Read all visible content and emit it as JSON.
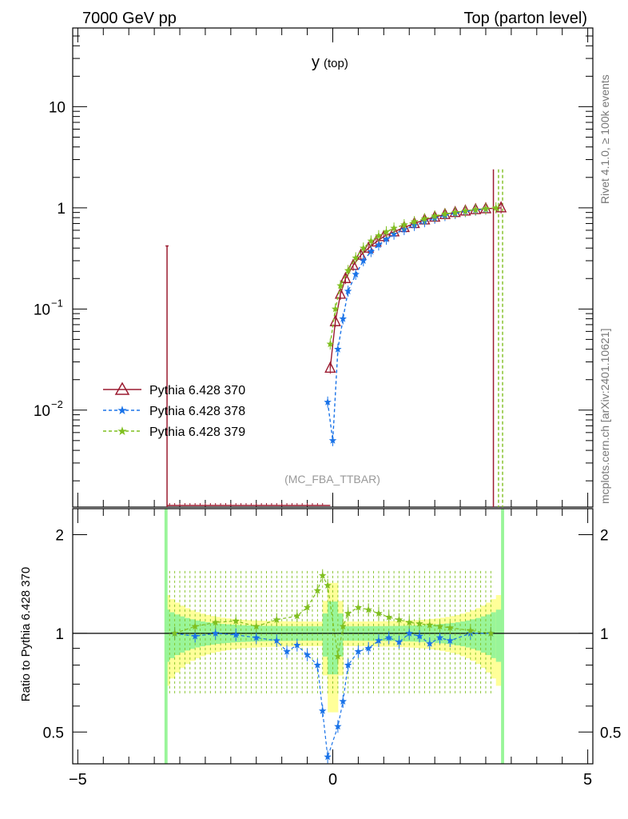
{
  "header": {
    "left": "7000 GeV pp",
    "right": "Top (parton level)",
    "side_top": "Rivet 4.1.0, ≥ 100k events",
    "side_bottom": "mcplots.cern.ch [arXiv:2401.10621]"
  },
  "colors": {
    "s370": "#9b1b30",
    "s378": "#1a73e8",
    "s379": "#7fbf1f",
    "band_yellow": "#ffff99",
    "band_green": "#99f599"
  },
  "chart_data": [
    {
      "type": "line",
      "title": "y",
      "title_sub": "(top)",
      "annotation": "(MC_FBA_TTBAR)",
      "yscale": "log",
      "xlim": [
        -5.1,
        5.1
      ],
      "ylim": [
        0.0011,
        60
      ],
      "y_ticks": [
        {
          "v": 0.01,
          "label": "10",
          "exp": "−2"
        },
        {
          "v": 0.1,
          "label": "10",
          "exp": "−1"
        },
        {
          "v": 1,
          "label": "1",
          "exp": ""
        },
        {
          "v": 10,
          "label": "10",
          "exp": ""
        }
      ],
      "legend_position": "bottom-left",
      "series": [
        {
          "name": "Pythia 6.428 370",
          "marker": "triangle",
          "x": [
            -0.05,
            0.05,
            0.15,
            0.25,
            0.4,
            0.55,
            0.7,
            0.85,
            1.0,
            1.2,
            1.4,
            1.6,
            1.8,
            2.0,
            2.2,
            2.4,
            2.6,
            2.8,
            3.0,
            3.3
          ],
          "y": [
            0.026,
            0.075,
            0.14,
            0.2,
            0.27,
            0.34,
            0.4,
            0.46,
            0.52,
            0.58,
            0.64,
            0.7,
            0.76,
            0.81,
            0.86,
            0.9,
            0.93,
            0.96,
            0.98,
            1.0
          ]
        },
        {
          "name": "Pythia 6.428 378",
          "marker": "star",
          "x": [
            -0.1,
            0.0,
            0.1,
            0.2,
            0.3,
            0.45,
            0.6,
            0.75,
            0.9,
            1.05,
            1.2,
            1.4,
            1.6,
            1.8,
            2.0,
            2.2,
            2.4,
            2.6,
            2.8,
            3.0
          ],
          "y": [
            0.012,
            0.005,
            0.04,
            0.08,
            0.15,
            0.22,
            0.3,
            0.37,
            0.43,
            0.49,
            0.55,
            0.61,
            0.67,
            0.73,
            0.79,
            0.84,
            0.88,
            0.92,
            0.95,
            0.97
          ]
        },
        {
          "name": "Pythia 6.428 379",
          "marker": "star",
          "x": [
            -0.05,
            0.05,
            0.15,
            0.3,
            0.45,
            0.6,
            0.75,
            0.9,
            1.05,
            1.2,
            1.4,
            1.6,
            1.8,
            2.0,
            2.2,
            2.4,
            2.6,
            2.8,
            3.0,
            3.2
          ],
          "y": [
            0.045,
            0.1,
            0.17,
            0.24,
            0.32,
            0.4,
            0.47,
            0.53,
            0.58,
            0.63,
            0.68,
            0.73,
            0.78,
            0.83,
            0.87,
            0.9,
            0.93,
            0.96,
            0.98,
            1.0
          ]
        }
      ]
    },
    {
      "type": "line",
      "ylabel": "Ratio to Pythia 6.428 370",
      "yscale": "log",
      "xlim": [
        -5.1,
        5.1
      ],
      "ylim": [
        0.4,
        2.4
      ],
      "x_ticks": [
        {
          "v": -5,
          "label": "−5"
        },
        {
          "v": 0,
          "label": "0"
        },
        {
          "v": 5,
          "label": "5"
        }
      ],
      "y_ticks": [
        {
          "v": 0.5,
          "label": "0.5"
        },
        {
          "v": 1,
          "label": "1"
        },
        {
          "v": 2,
          "label": "2"
        }
      ],
      "series": [
        {
          "name": "Pythia 6.428 378",
          "x": [
            -3.1,
            -2.7,
            -2.3,
            -1.9,
            -1.5,
            -1.1,
            -0.9,
            -0.7,
            -0.5,
            -0.3,
            -0.2,
            -0.1,
            0.1,
            0.2,
            0.3,
            0.5,
            0.7,
            0.9,
            1.1,
            1.3,
            1.5,
            1.7,
            1.9,
            2.1,
            2.3,
            2.7,
            3.1
          ],
          "y": [
            1.0,
            0.98,
            1.0,
            0.99,
            0.97,
            0.95,
            0.88,
            0.92,
            0.86,
            0.8,
            0.58,
            0.42,
            0.52,
            0.62,
            0.8,
            0.88,
            0.9,
            0.95,
            0.97,
            0.94,
            1.0,
            0.98,
            0.93,
            0.97,
            0.95,
            1.0,
            1.0
          ]
        },
        {
          "name": "Pythia 6.428 379",
          "x": [
            -3.1,
            -2.7,
            -2.3,
            -1.9,
            -1.5,
            -1.1,
            -0.7,
            -0.5,
            -0.3,
            -0.2,
            -0.1,
            0.1,
            0.2,
            0.3,
            0.5,
            0.7,
            0.9,
            1.1,
            1.3,
            1.5,
            1.7,
            1.9,
            2.1,
            2.3,
            2.7,
            3.1
          ],
          "y": [
            1.0,
            1.05,
            1.08,
            1.09,
            1.05,
            1.1,
            1.13,
            1.2,
            1.35,
            1.5,
            1.4,
            0.85,
            1.05,
            1.15,
            1.2,
            1.18,
            1.15,
            1.12,
            1.1,
            1.08,
            1.07,
            1.06,
            1.05,
            1.04,
            1.02,
            1.0
          ]
        }
      ]
    }
  ]
}
